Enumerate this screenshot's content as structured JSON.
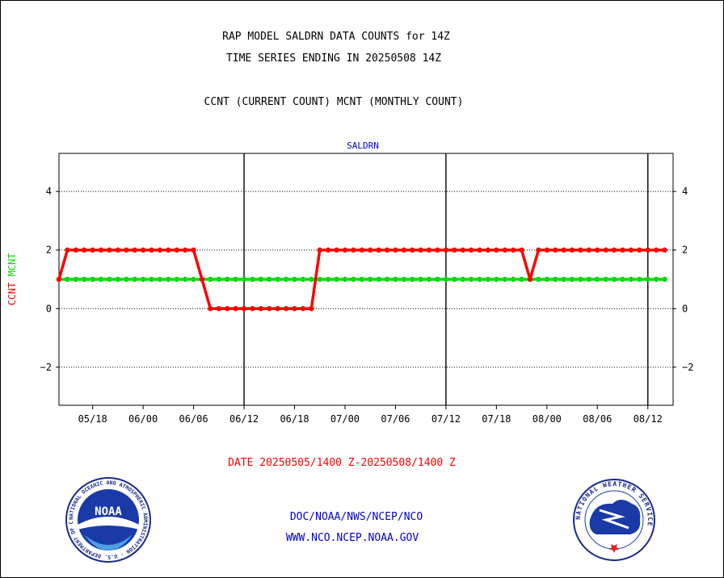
{
  "header": {
    "title_line1": "RAP MODEL SALDRN DATA COUNTS for 14Z",
    "title_line2": "TIME SERIES ENDING IN 20250508 14Z",
    "subtitle": "CCNT (CURRENT COUNT) MCNT (MONTHLY COUNT)"
  },
  "footer": {
    "date_range": "DATE 20250505/1400 Z-20250508/1400 Z",
    "org_path": "DOC/NOAA/NWS/NCEP/NCO",
    "website": "WWW.NCO.NCEP.NOAA.GOV",
    "noaa_logo_text": "NOAA",
    "noaa_ring_text": "NATIONAL OCEANIC AND ATMOSPHERIC ADMINISTRATION · U.S. DEPARTMENT OF COMMERCE",
    "nws_ring_text": "NATIONAL WEATHER SERVICE"
  },
  "colors": {
    "ccnt": "#ff0000",
    "mcnt": "#00dd00",
    "title": "#000000",
    "label_blue": "#0000cc",
    "date_red": "#ff0000"
  },
  "chart_data": {
    "type": "line",
    "title": "SALDRN",
    "ylabel_parts": [
      {
        "text": "CCNT",
        "color": "#ff0000"
      },
      {
        "text": "MCNT",
        "color": "#00dd00"
      }
    ],
    "ylim": [
      -3.3,
      5.3
    ],
    "yticks": [
      -2,
      0,
      2,
      4
    ],
    "ytick_labels": [
      "−2",
      "0",
      "2",
      "4"
    ],
    "xlim": [
      0,
      73
    ],
    "xtick_positions": [
      4,
      10,
      16,
      22,
      28,
      34,
      40,
      46,
      52,
      58,
      64,
      70
    ],
    "xtick_labels": [
      "05/18",
      "06/00",
      "06/06",
      "06/12",
      "06/18",
      "07/00",
      "07/06",
      "07/12",
      "07/18",
      "08/00",
      "08/06",
      "08/12"
    ],
    "vlines": [
      22,
      46,
      70
    ],
    "grid": "horizontal dotted",
    "series": [
      {
        "name": "CCNT",
        "color": "#ff0000",
        "x": [
          0,
          1,
          2,
          3,
          4,
          5,
          6,
          7,
          8,
          9,
          10,
          11,
          12,
          13,
          14,
          15,
          16,
          17,
          18,
          19,
          20,
          21,
          22,
          23,
          24,
          25,
          26,
          27,
          28,
          29,
          30,
          31,
          32,
          33,
          34,
          35,
          36,
          37,
          38,
          39,
          40,
          41,
          42,
          43,
          44,
          45,
          46,
          47,
          48,
          49,
          50,
          51,
          52,
          53,
          54,
          55,
          56,
          57,
          58,
          59,
          60,
          61,
          62,
          63,
          64,
          65,
          66,
          67,
          68,
          69,
          70,
          71,
          72
        ],
        "values": [
          1,
          2,
          2,
          2,
          2,
          2,
          2,
          2,
          2,
          2,
          2,
          2,
          2,
          2,
          2,
          2,
          2,
          1,
          0,
          0,
          0,
          0,
          0,
          0,
          0,
          0,
          0,
          0,
          0,
          0,
          0,
          2,
          2,
          2,
          2,
          2,
          2,
          2,
          2,
          2,
          2,
          2,
          2,
          2,
          2,
          2,
          2,
          2,
          2,
          2,
          2,
          2,
          2,
          2,
          2,
          2,
          1,
          2,
          2,
          2,
          2,
          2,
          2,
          2,
          2,
          2,
          2,
          2,
          2,
          2,
          2,
          2,
          2
        ]
      },
      {
        "name": "MCNT",
        "color": "#00dd00",
        "x": [
          0,
          1,
          2,
          3,
          4,
          5,
          6,
          7,
          8,
          9,
          10,
          11,
          12,
          13,
          14,
          15,
          16,
          17,
          18,
          19,
          20,
          21,
          22,
          23,
          24,
          25,
          26,
          27,
          28,
          29,
          30,
          31,
          32,
          33,
          34,
          35,
          36,
          37,
          38,
          39,
          40,
          41,
          42,
          43,
          44,
          45,
          46,
          47,
          48,
          49,
          50,
          51,
          52,
          53,
          54,
          55,
          56,
          57,
          58,
          59,
          60,
          61,
          62,
          63,
          64,
          65,
          66,
          67,
          68,
          69,
          70,
          71,
          72
        ],
        "values": [
          1,
          1,
          1,
          1,
          1,
          1,
          1,
          1,
          1,
          1,
          1,
          1,
          1,
          1,
          1,
          1,
          1,
          1,
          1,
          1,
          1,
          1,
          1,
          1,
          1,
          1,
          1,
          1,
          1,
          1,
          1,
          1,
          1,
          1,
          1,
          1,
          1,
          1,
          1,
          1,
          1,
          1,
          1,
          1,
          1,
          1,
          1,
          1,
          1,
          1,
          1,
          1,
          1,
          1,
          1,
          1,
          1,
          1,
          1,
          1,
          1,
          1,
          1,
          1,
          1,
          1,
          1,
          1,
          1,
          1,
          1,
          1,
          1
        ]
      }
    ]
  }
}
